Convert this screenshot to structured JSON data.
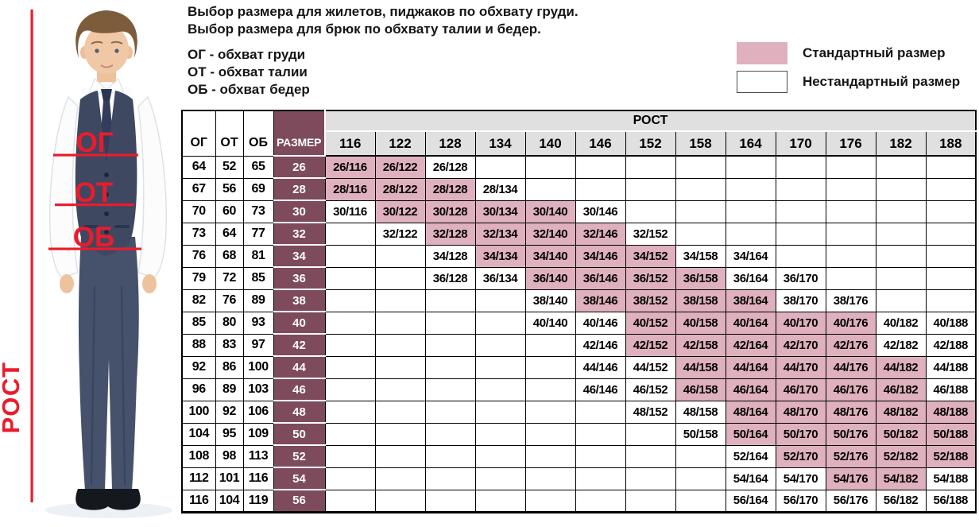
{
  "header": {
    "title_line1": "Выбор размера для жилетов, пиджаков по обхвату груди.",
    "title_line2": "Выбор размера для брюк по обхвату талии и бедер.",
    "abbr": [
      "ОГ - обхват груди",
      "ОТ - обхват талии",
      "ОБ - обхват бедер"
    ]
  },
  "legend": {
    "standard": "Стандартный размер",
    "nonstandard": "Нестандартный размер",
    "standard_color": "#dfb0bd",
    "nonstandard_color": "#ffffff"
  },
  "figure": {
    "chest_label": "ОГ",
    "waist_label": "ОТ",
    "hips_label": "ОБ",
    "height_label": "РОСТ",
    "annotation_color": "#ec1b2c"
  },
  "chart_data": {
    "type": "table",
    "measure_headers": [
      "ОГ",
      "ОТ",
      "ОБ"
    ],
    "size_header": "РАЗМЕР",
    "height_header": "РОСТ",
    "size_column_color": "#7d4b5c",
    "header_fill": "#e0e0e0",
    "heights": [
      116,
      122,
      128,
      134,
      140,
      146,
      152,
      158,
      164,
      170,
      176,
      182,
      188
    ],
    "rows": [
      {
        "og": 64,
        "ot": 52,
        "ob": 65,
        "size": 26,
        "cells": [
          [
            "26/116",
            1
          ],
          [
            "26/122",
            1
          ],
          [
            "26/128",
            0
          ],
          null,
          null,
          null,
          null,
          null,
          null,
          null,
          null,
          null,
          null
        ]
      },
      {
        "og": 67,
        "ot": 56,
        "ob": 69,
        "size": 28,
        "cells": [
          [
            "28/116",
            1
          ],
          [
            "28/122",
            1
          ],
          [
            "28/128",
            1
          ],
          [
            "28/134",
            0
          ],
          null,
          null,
          null,
          null,
          null,
          null,
          null,
          null,
          null
        ]
      },
      {
        "og": 70,
        "ot": 60,
        "ob": 73,
        "size": 30,
        "cells": [
          [
            "30/116",
            0
          ],
          [
            "30/122",
            1
          ],
          [
            "30/128",
            1
          ],
          [
            "30/134",
            1
          ],
          [
            "30/140",
            1
          ],
          [
            "30/146",
            0
          ],
          null,
          null,
          null,
          null,
          null,
          null,
          null
        ]
      },
      {
        "og": 73,
        "ot": 64,
        "ob": 77,
        "size": 32,
        "cells": [
          null,
          [
            "32/122",
            0
          ],
          [
            "32/128",
            1
          ],
          [
            "32/134",
            1
          ],
          [
            "32/140",
            1
          ],
          [
            "32/146",
            1
          ],
          [
            "32/152",
            0
          ],
          null,
          null,
          null,
          null,
          null,
          null
        ]
      },
      {
        "og": 76,
        "ot": 68,
        "ob": 81,
        "size": 34,
        "cells": [
          null,
          null,
          [
            "34/128",
            0
          ],
          [
            "34/134",
            1
          ],
          [
            "34/140",
            1
          ],
          [
            "34/146",
            1
          ],
          [
            "34/152",
            1
          ],
          [
            "34/158",
            0
          ],
          [
            "34/164",
            0
          ],
          null,
          null,
          null,
          null
        ]
      },
      {
        "og": 79,
        "ot": 72,
        "ob": 85,
        "size": 36,
        "cells": [
          null,
          null,
          [
            "36/128",
            0
          ],
          [
            "36/134",
            0
          ],
          [
            "36/140",
            1
          ],
          [
            "36/146",
            1
          ],
          [
            "36/152",
            1
          ],
          [
            "36/158",
            1
          ],
          [
            "36/164",
            0
          ],
          [
            "36/170",
            0
          ],
          null,
          null,
          null
        ]
      },
      {
        "og": 82,
        "ot": 76,
        "ob": 89,
        "size": 38,
        "cells": [
          null,
          null,
          null,
          null,
          [
            "38/140",
            0
          ],
          [
            "38/146",
            1
          ],
          [
            "38/152",
            1
          ],
          [
            "38/158",
            1
          ],
          [
            "38/164",
            1
          ],
          [
            "38/170",
            0
          ],
          [
            "38/176",
            0
          ],
          null,
          null
        ]
      },
      {
        "og": 85,
        "ot": 80,
        "ob": 93,
        "size": 40,
        "cells": [
          null,
          null,
          null,
          null,
          [
            "40/140",
            0
          ],
          [
            "40/146",
            0
          ],
          [
            "40/152",
            1
          ],
          [
            "40/158",
            1
          ],
          [
            "40/164",
            1
          ],
          [
            "40/170",
            1
          ],
          [
            "40/176",
            1
          ],
          [
            "40/182",
            0
          ],
          [
            "40/188",
            0
          ]
        ]
      },
      {
        "og": 88,
        "ot": 83,
        "ob": 97,
        "size": 42,
        "cells": [
          null,
          null,
          null,
          null,
          null,
          [
            "42/146",
            0
          ],
          [
            "42/152",
            1
          ],
          [
            "42/158",
            1
          ],
          [
            "42/164",
            1
          ],
          [
            "42/170",
            1
          ],
          [
            "42/176",
            1
          ],
          [
            "42/182",
            0
          ],
          [
            "42/188",
            0
          ]
        ]
      },
      {
        "og": 92,
        "ot": 86,
        "ob": 100,
        "size": 44,
        "cells": [
          null,
          null,
          null,
          null,
          null,
          [
            "44/146",
            0
          ],
          [
            "44/152",
            0
          ],
          [
            "44/158",
            1
          ],
          [
            "44/164",
            1
          ],
          [
            "44/170",
            1
          ],
          [
            "44/176",
            1
          ],
          [
            "44/182",
            1
          ],
          [
            "44/188",
            0
          ]
        ]
      },
      {
        "og": 96,
        "ot": 89,
        "ob": 103,
        "size": 46,
        "cells": [
          null,
          null,
          null,
          null,
          null,
          [
            "46/146",
            0
          ],
          [
            "46/152",
            0
          ],
          [
            "46/158",
            1
          ],
          [
            "46/164",
            1
          ],
          [
            "46/170",
            1
          ],
          [
            "46/176",
            1
          ],
          [
            "46/182",
            1
          ],
          [
            "46/188",
            0
          ]
        ]
      },
      {
        "og": 100,
        "ot": 92,
        "ob": 106,
        "size": 48,
        "cells": [
          null,
          null,
          null,
          null,
          null,
          null,
          [
            "48/152",
            0
          ],
          [
            "48/158",
            0
          ],
          [
            "48/164",
            1
          ],
          [
            "48/170",
            1
          ],
          [
            "48/176",
            1
          ],
          [
            "48/182",
            1
          ],
          [
            "48/188",
            1
          ]
        ]
      },
      {
        "og": 104,
        "ot": 95,
        "ob": 109,
        "size": 50,
        "cells": [
          null,
          null,
          null,
          null,
          null,
          null,
          null,
          [
            "50/158",
            0
          ],
          [
            "50/164",
            1
          ],
          [
            "50/170",
            1
          ],
          [
            "50/176",
            1
          ],
          [
            "50/182",
            1
          ],
          [
            "50/188",
            1
          ]
        ]
      },
      {
        "og": 108,
        "ot": 98,
        "ob": 113,
        "size": 52,
        "cells": [
          null,
          null,
          null,
          null,
          null,
          null,
          null,
          null,
          [
            "52/164",
            0
          ],
          [
            "52/170",
            1
          ],
          [
            "52/176",
            1
          ],
          [
            "52/182",
            1
          ],
          [
            "52/188",
            1
          ]
        ]
      },
      {
        "og": 112,
        "ot": 101,
        "ob": 116,
        "size": 54,
        "cells": [
          null,
          null,
          null,
          null,
          null,
          null,
          null,
          null,
          [
            "54/164",
            0
          ],
          [
            "54/170",
            0
          ],
          [
            "54/176",
            1
          ],
          [
            "54/182",
            1
          ],
          [
            "54/188",
            0
          ]
        ]
      },
      {
        "og": 116,
        "ot": 104,
        "ob": 119,
        "size": 56,
        "cells": [
          null,
          null,
          null,
          null,
          null,
          null,
          null,
          null,
          [
            "56/164",
            0
          ],
          [
            "56/170",
            0
          ],
          [
            "56/176",
            0
          ],
          [
            "56/182",
            0
          ],
          [
            "56/188",
            0
          ]
        ]
      }
    ]
  }
}
